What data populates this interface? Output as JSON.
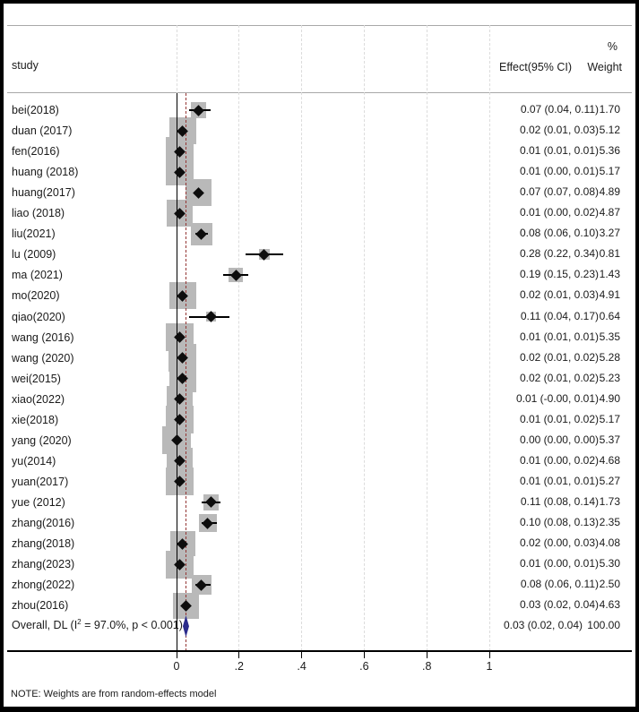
{
  "header": {
    "study": "study",
    "percent": "%",
    "effect": "Effect(95% CI)",
    "weight": "Weight"
  },
  "note": "NOTE: Weights are from random-effects model",
  "colors": {
    "box": "#b9b9b9",
    "diamond": "#0d0d0d",
    "ci_line": "#000000",
    "overall_diamond": "#2b2b8c",
    "null_line": "#000000",
    "overall_line": "#943634",
    "gridline": "#dcdcdc",
    "frame_line": "#a8a8a8",
    "text": "#1a1a1a"
  },
  "chart_data": {
    "type": "forest",
    "title": "",
    "xlabel": "",
    "x_ticks": [
      0,
      0.2,
      0.4,
      0.6,
      0.8,
      1
    ],
    "x_tick_labels": [
      "0",
      ".2",
      ".4",
      ".6",
      ".8",
      "1"
    ],
    "xlim_ticks": [
      0,
      1
    ],
    "grid": "vertical-dashed",
    "studies": [
      {
        "label": "bei(2018)",
        "effect": 0.07,
        "ci": [
          0.04,
          0.11
        ],
        "weight": 1.7,
        "effect_label": "0.07 (0.04, 0.11)",
        "weight_label": "1.70"
      },
      {
        "label": "duan (2017)",
        "effect": 0.02,
        "ci": [
          0.01,
          0.03
        ],
        "weight": 5.12,
        "effect_label": "0.02 (0.01, 0.03)",
        "weight_label": "5.12"
      },
      {
        "label": "fen(2016)",
        "effect": 0.01,
        "ci": [
          0.01,
          0.01
        ],
        "weight": 5.36,
        "effect_label": "0.01 (0.01, 0.01)",
        "weight_label": "5.36"
      },
      {
        "label": "huang (2018)",
        "effect": 0.01,
        "ci": [
          0.0,
          0.01
        ],
        "weight": 5.17,
        "effect_label": "0.01 (0.00, 0.01)",
        "weight_label": "5.17"
      },
      {
        "label": "huang(2017)",
        "effect": 0.07,
        "ci": [
          0.07,
          0.08
        ],
        "weight": 4.89,
        "effect_label": "0.07 (0.07, 0.08)",
        "weight_label": "4.89"
      },
      {
        "label": "liao (2018)",
        "effect": 0.01,
        "ci": [
          0.0,
          0.02
        ],
        "weight": 4.87,
        "effect_label": "0.01 (0.00, 0.02)",
        "weight_label": "4.87"
      },
      {
        "label": "liu(2021)",
        "effect": 0.08,
        "ci": [
          0.06,
          0.1
        ],
        "weight": 3.27,
        "effect_label": "0.08 (0.06, 0.10)",
        "weight_label": "3.27"
      },
      {
        "label": "lu (2009)",
        "effect": 0.28,
        "ci": [
          0.22,
          0.34
        ],
        "weight": 0.81,
        "effect_label": "0.28 (0.22, 0.34)",
        "weight_label": "0.81"
      },
      {
        "label": "ma (2021)",
        "effect": 0.19,
        "ci": [
          0.15,
          0.23
        ],
        "weight": 1.43,
        "effect_label": "0.19 (0.15, 0.23)",
        "weight_label": "1.43"
      },
      {
        "label": "mo(2020)",
        "effect": 0.02,
        "ci": [
          0.01,
          0.03
        ],
        "weight": 4.91,
        "effect_label": "0.02 (0.01, 0.03)",
        "weight_label": "4.91"
      },
      {
        "label": "qiao(2020)",
        "effect": 0.11,
        "ci": [
          0.04,
          0.17
        ],
        "weight": 0.64,
        "effect_label": "0.11 (0.04, 0.17)",
        "weight_label": "0.64"
      },
      {
        "label": "wang (2016)",
        "effect": 0.01,
        "ci": [
          0.01,
          0.01
        ],
        "weight": 5.35,
        "effect_label": "0.01 (0.01, 0.01)",
        "weight_label": "5.35"
      },
      {
        "label": "wang (2020)",
        "effect": 0.02,
        "ci": [
          0.01,
          0.02
        ],
        "weight": 5.28,
        "effect_label": "0.02 (0.01, 0.02)",
        "weight_label": "5.28"
      },
      {
        "label": "wei(2015)",
        "effect": 0.02,
        "ci": [
          0.01,
          0.02
        ],
        "weight": 5.23,
        "effect_label": "0.02 (0.01, 0.02)",
        "weight_label": "5.23"
      },
      {
        "label": "xiao(2022)",
        "effect": 0.01,
        "ci": [
          -0.002,
          0.01
        ],
        "weight": 4.9,
        "effect_label": "0.01 (-0.00, 0.01)",
        "weight_label": "4.90"
      },
      {
        "label": "xie(2018)",
        "effect": 0.01,
        "ci": [
          0.01,
          0.02
        ],
        "weight": 5.17,
        "effect_label": "0.01 (0.01, 0.02)",
        "weight_label": "5.17"
      },
      {
        "label": "yang (2020)",
        "effect": 0.0,
        "ci": [
          0.0,
          0.0
        ],
        "weight": 5.37,
        "effect_label": "0.00 (0.00, 0.00)",
        "weight_label": "5.37"
      },
      {
        "label": "yu(2014)",
        "effect": 0.01,
        "ci": [
          0.0,
          0.02
        ],
        "weight": 4.68,
        "effect_label": "0.01 (0.00, 0.02)",
        "weight_label": "4.68"
      },
      {
        "label": "yuan(2017)",
        "effect": 0.01,
        "ci": [
          0.01,
          0.01
        ],
        "weight": 5.27,
        "effect_label": "0.01 (0.01, 0.01)",
        "weight_label": "5.27"
      },
      {
        "label": "yue (2012)",
        "effect": 0.11,
        "ci": [
          0.08,
          0.14
        ],
        "weight": 1.73,
        "effect_label": "0.11 (0.08, 0.14)",
        "weight_label": "1.73"
      },
      {
        "label": "zhang(2016)",
        "effect": 0.1,
        "ci": [
          0.08,
          0.13
        ],
        "weight": 2.35,
        "effect_label": "0.10 (0.08, 0.13)",
        "weight_label": "2.35"
      },
      {
        "label": "zhang(2018)",
        "effect": 0.02,
        "ci": [
          0.0,
          0.03
        ],
        "weight": 4.08,
        "effect_label": "0.02 (0.00, 0.03)",
        "weight_label": "4.08"
      },
      {
        "label": "zhang(2023)",
        "effect": 0.01,
        "ci": [
          0.0,
          0.01
        ],
        "weight": 5.3,
        "effect_label": "0.01 (0.00, 0.01)",
        "weight_label": "5.30"
      },
      {
        "label": "zhong(2022)",
        "effect": 0.08,
        "ci": [
          0.06,
          0.11
        ],
        "weight": 2.5,
        "effect_label": "0.08 (0.06, 0.11)",
        "weight_label": "2.50"
      },
      {
        "label": "zhou(2016)",
        "effect": 0.03,
        "ci": [
          0.02,
          0.04
        ],
        "weight": 4.63,
        "effect_label": "0.03 (0.02, 0.04)",
        "weight_label": "4.63"
      }
    ],
    "overall": {
      "label_pre": "Overall, DL (I",
      "label_sup": "2",
      "label_post": " = 97.0%, p < 0.001)",
      "effect": 0.03,
      "ci": [
        0.02,
        0.04
      ],
      "effect_label": "0.03 (0.02, 0.04)",
      "weight_label": "100.00",
      "heterogeneity_i2": "97.0%",
      "heterogeneity_p": "< 0.001"
    }
  }
}
